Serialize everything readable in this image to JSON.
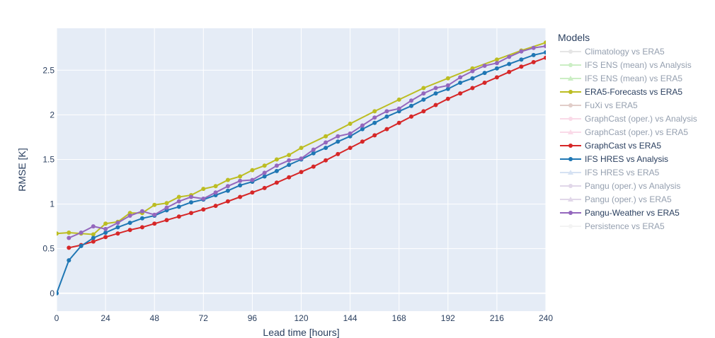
{
  "chart_data": {
    "type": "line",
    "title": "",
    "xlabel": "Lead time [hours]",
    "ylabel": "RMSE [K]",
    "xlim": [
      0,
      240
    ],
    "ylim": [
      -0.2,
      2.97
    ],
    "x_ticks": [
      0,
      24,
      48,
      72,
      96,
      120,
      144,
      168,
      192,
      216,
      240
    ],
    "y_ticks": [
      0,
      0.5,
      1,
      1.5,
      2,
      2.5
    ],
    "y_tick_labels": [
      "0",
      "0.5",
      "1",
      "1.5",
      "2",
      "2.5"
    ],
    "grid": true,
    "legend_title": "Models",
    "legend_position": "right",
    "series": [
      {
        "name": "Climatology vs ERA5",
        "color": "#cccccc",
        "visible": false,
        "marker": "circle"
      },
      {
        "name": "IFS ENS (mean) vs Analysis",
        "color": "#98df8a",
        "visible": false,
        "marker": "circle"
      },
      {
        "name": "IFS ENS (mean) vs ERA5",
        "color": "#98df8a",
        "visible": false,
        "marker": "triangle"
      },
      {
        "name": "ERA5-Forecasts vs ERA5",
        "color": "#bcbd22",
        "visible": true,
        "marker": "circle",
        "x": [
          0,
          6,
          12,
          18,
          24,
          30,
          36,
          42,
          48,
          54,
          60,
          66,
          72,
          78,
          84,
          90,
          96,
          102,
          108,
          114,
          120,
          132,
          144,
          156,
          168,
          180,
          192,
          204,
          216,
          228,
          240
        ],
        "y": [
          0.67,
          0.68,
          0.67,
          0.66,
          0.78,
          0.8,
          0.9,
          0.9,
          0.99,
          1.01,
          1.08,
          1.1,
          1.17,
          1.2,
          1.27,
          1.31,
          1.38,
          1.43,
          1.5,
          1.55,
          1.63,
          1.76,
          1.9,
          2.04,
          2.17,
          2.3,
          2.41,
          2.52,
          2.62,
          2.72,
          2.81
        ]
      },
      {
        "name": "FuXi vs ERA5",
        "color": "#c49c94",
        "visible": false,
        "marker": "circle"
      },
      {
        "name": "GraphCast (oper.) vs Analysis",
        "color": "#f7b6d2",
        "visible": false,
        "marker": "circle"
      },
      {
        "name": "GraphCast (oper.) vs ERA5",
        "color": "#f7b6d2",
        "visible": false,
        "marker": "triangle"
      },
      {
        "name": "GraphCast vs ERA5",
        "color": "#d62728",
        "visible": true,
        "marker": "circle",
        "x": [
          6,
          12,
          18,
          24,
          30,
          36,
          42,
          48,
          54,
          60,
          66,
          72,
          78,
          84,
          90,
          96,
          102,
          108,
          114,
          120,
          126,
          132,
          138,
          144,
          150,
          156,
          162,
          168,
          174,
          180,
          186,
          192,
          198,
          204,
          210,
          216,
          222,
          228,
          234,
          240
        ],
        "y": [
          0.51,
          0.54,
          0.58,
          0.63,
          0.67,
          0.71,
          0.74,
          0.78,
          0.82,
          0.86,
          0.9,
          0.94,
          0.98,
          1.03,
          1.08,
          1.13,
          1.18,
          1.24,
          1.3,
          1.36,
          1.42,
          1.49,
          1.56,
          1.63,
          1.7,
          1.77,
          1.84,
          1.91,
          1.98,
          2.04,
          2.11,
          2.18,
          2.24,
          2.3,
          2.36,
          2.42,
          2.48,
          2.54,
          2.59,
          2.64
        ]
      },
      {
        "name": "IFS HRES vs Analysis",
        "color": "#1f77b4",
        "visible": true,
        "marker": "circle",
        "x": [
          0,
          6,
          12,
          18,
          24,
          30,
          36,
          42,
          48,
          54,
          60,
          66,
          72,
          78,
          84,
          90,
          96,
          102,
          108,
          114,
          120,
          126,
          132,
          138,
          144,
          150,
          156,
          162,
          168,
          174,
          180,
          186,
          192,
          198,
          204,
          210,
          216,
          222,
          228,
          234,
          240
        ],
        "y": [
          0.0,
          0.37,
          0.53,
          0.62,
          0.68,
          0.74,
          0.79,
          0.84,
          0.87,
          0.93,
          0.97,
          1.02,
          1.05,
          1.1,
          1.15,
          1.21,
          1.25,
          1.31,
          1.37,
          1.44,
          1.5,
          1.57,
          1.63,
          1.7,
          1.76,
          1.84,
          1.91,
          1.98,
          2.04,
          2.1,
          2.17,
          2.24,
          2.29,
          2.36,
          2.41,
          2.47,
          2.52,
          2.57,
          2.62,
          2.67,
          2.7
        ]
      },
      {
        "name": "IFS HRES vs ERA5",
        "color": "#aec7e8",
        "visible": false,
        "marker": "triangle"
      },
      {
        "name": "Pangu (oper.) vs Analysis",
        "color": "#c5b0d5",
        "visible": false,
        "marker": "circle"
      },
      {
        "name": "Pangu (oper.) vs ERA5",
        "color": "#c5b0d5",
        "visible": false,
        "marker": "triangle"
      },
      {
        "name": "Pangu-Weather vs ERA5",
        "color": "#9467bd",
        "visible": true,
        "marker": "circle",
        "x": [
          6,
          12,
          18,
          24,
          30,
          36,
          42,
          48,
          54,
          60,
          66,
          72,
          78,
          84,
          90,
          96,
          102,
          108,
          114,
          120,
          126,
          132,
          138,
          144,
          150,
          156,
          162,
          168,
          174,
          180,
          186,
          192,
          198,
          204,
          210,
          216,
          222,
          228,
          234,
          240
        ],
        "y": [
          0.62,
          0.68,
          0.75,
          0.72,
          0.79,
          0.87,
          0.92,
          0.88,
          0.96,
          1.03,
          1.08,
          1.06,
          1.13,
          1.2,
          1.26,
          1.27,
          1.35,
          1.43,
          1.49,
          1.51,
          1.61,
          1.69,
          1.76,
          1.79,
          1.88,
          1.97,
          2.04,
          2.07,
          2.16,
          2.24,
          2.3,
          2.33,
          2.42,
          2.49,
          2.55,
          2.58,
          2.65,
          2.71,
          2.75,
          2.77
        ]
      },
      {
        "name": "Persistence vs ERA5",
        "color": "#e8e8e8",
        "visible": false,
        "marker": "circle"
      }
    ]
  }
}
